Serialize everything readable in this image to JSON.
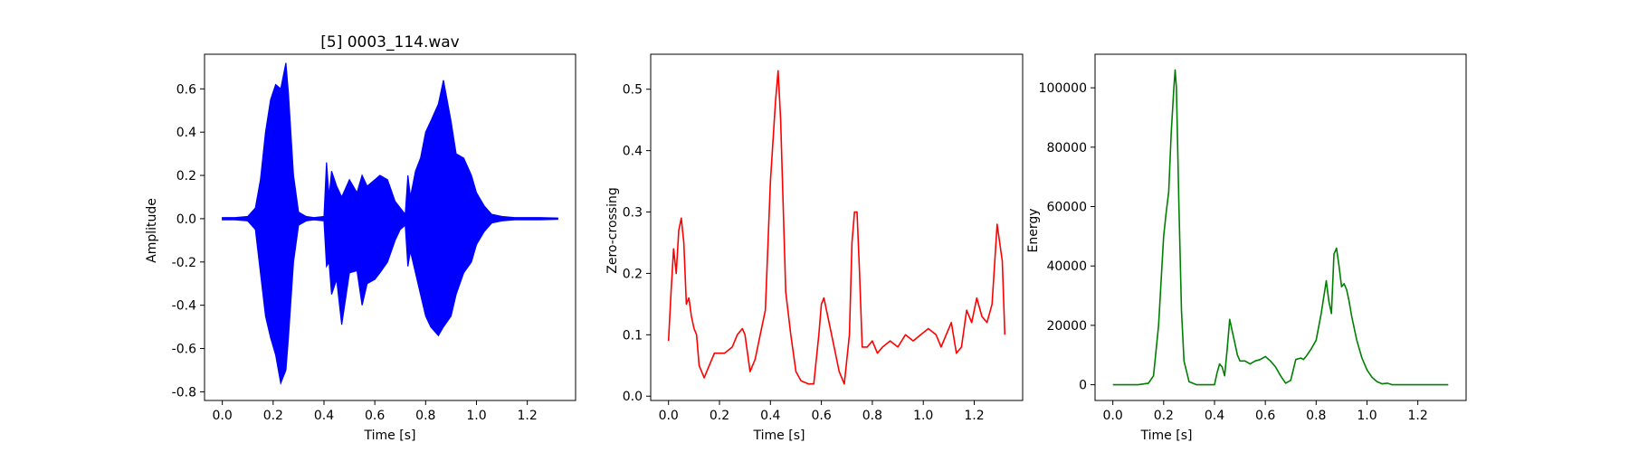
{
  "chart_data": [
    {
      "type": "line",
      "title": "[5] 0003_114.wav",
      "xlabel": "Time [s]",
      "ylabel": "Amplitude",
      "xlim": [
        -0.07,
        1.39
      ],
      "ylim": [
        -0.84,
        0.76
      ],
      "xticks": [
        0.0,
        0.2,
        0.4,
        0.6,
        0.8,
        1.0,
        1.2
      ],
      "yticks": [
        -0.8,
        -0.6,
        -0.4,
        -0.2,
        0.0,
        0.2,
        0.4,
        0.6
      ],
      "series": [
        {
          "color": "#0000ff",
          "render": "waveform",
          "x": [
            0.0,
            0.05,
            0.1,
            0.13,
            0.15,
            0.17,
            0.19,
            0.21,
            0.23,
            0.25,
            0.26,
            0.28,
            0.3,
            0.33,
            0.36,
            0.4,
            0.41,
            0.42,
            0.43,
            0.45,
            0.47,
            0.5,
            0.53,
            0.55,
            0.57,
            0.6,
            0.62,
            0.65,
            0.68,
            0.7,
            0.72,
            0.73,
            0.74,
            0.76,
            0.78,
            0.8,
            0.82,
            0.85,
            0.87,
            0.9,
            0.92,
            0.95,
            0.98,
            1.0,
            1.03,
            1.06,
            1.1,
            1.15,
            1.2,
            1.25,
            1.32
          ],
          "upper": [
            0.005,
            0.005,
            0.01,
            0.05,
            0.18,
            0.4,
            0.55,
            0.62,
            0.6,
            0.72,
            0.58,
            0.2,
            0.03,
            0.01,
            0.005,
            0.01,
            0.26,
            0.1,
            0.22,
            0.15,
            0.1,
            0.18,
            0.12,
            0.2,
            0.15,
            0.18,
            0.2,
            0.18,
            0.08,
            0.05,
            0.02,
            0.2,
            0.1,
            0.22,
            0.28,
            0.4,
            0.45,
            0.53,
            0.64,
            0.45,
            0.3,
            0.28,
            0.2,
            0.12,
            0.06,
            0.02,
            0.01,
            0.005,
            0.005,
            0.005,
            0.003
          ],
          "lower": [
            -0.005,
            -0.005,
            -0.01,
            -0.05,
            -0.25,
            -0.45,
            -0.55,
            -0.63,
            -0.76,
            -0.7,
            -0.55,
            -0.2,
            -0.03,
            -0.01,
            -0.005,
            -0.01,
            -0.22,
            -0.2,
            -0.35,
            -0.28,
            -0.49,
            -0.25,
            -0.24,
            -0.4,
            -0.3,
            -0.28,
            -0.25,
            -0.2,
            -0.1,
            -0.05,
            -0.03,
            -0.22,
            -0.15,
            -0.25,
            -0.35,
            -0.45,
            -0.5,
            -0.54,
            -0.5,
            -0.45,
            -0.35,
            -0.25,
            -0.2,
            -0.12,
            -0.06,
            -0.02,
            -0.01,
            -0.005,
            -0.005,
            -0.005,
            -0.003
          ]
        }
      ],
      "grid": false
    },
    {
      "type": "line",
      "title": "",
      "xlabel": "Time [s]",
      "ylabel": "Zero-crossing",
      "xlim": [
        -0.07,
        1.39
      ],
      "ylim": [
        -0.007,
        0.557
      ],
      "xticks": [
        0.0,
        0.2,
        0.4,
        0.6,
        0.8,
        1.0,
        1.2
      ],
      "yticks": [
        0.0,
        0.1,
        0.2,
        0.3,
        0.4,
        0.5
      ],
      "series": [
        {
          "color": "#ff0000",
          "x": [
            0.0,
            0.01,
            0.02,
            0.03,
            0.04,
            0.05,
            0.06,
            0.07,
            0.08,
            0.09,
            0.1,
            0.11,
            0.12,
            0.14,
            0.16,
            0.18,
            0.2,
            0.22,
            0.25,
            0.27,
            0.29,
            0.3,
            0.32,
            0.34,
            0.36,
            0.38,
            0.4,
            0.42,
            0.43,
            0.44,
            0.46,
            0.48,
            0.5,
            0.52,
            0.55,
            0.57,
            0.59,
            0.6,
            0.61,
            0.63,
            0.65,
            0.67,
            0.69,
            0.71,
            0.72,
            0.73,
            0.74,
            0.75,
            0.76,
            0.78,
            0.8,
            0.82,
            0.84,
            0.87,
            0.9,
            0.93,
            0.96,
            0.99,
            1.02,
            1.05,
            1.07,
            1.09,
            1.11,
            1.13,
            1.15,
            1.17,
            1.19,
            1.21,
            1.23,
            1.25,
            1.27,
            1.29,
            1.31,
            1.32
          ],
          "y": [
            0.09,
            0.17,
            0.24,
            0.2,
            0.27,
            0.29,
            0.25,
            0.15,
            0.16,
            0.13,
            0.11,
            0.1,
            0.05,
            0.03,
            0.05,
            0.07,
            0.07,
            0.07,
            0.08,
            0.1,
            0.11,
            0.1,
            0.04,
            0.06,
            0.1,
            0.14,
            0.35,
            0.48,
            0.53,
            0.45,
            0.17,
            0.1,
            0.04,
            0.025,
            0.02,
            0.02,
            0.1,
            0.15,
            0.16,
            0.12,
            0.08,
            0.04,
            0.02,
            0.1,
            0.25,
            0.3,
            0.3,
            0.2,
            0.08,
            0.08,
            0.09,
            0.07,
            0.08,
            0.09,
            0.08,
            0.1,
            0.09,
            0.1,
            0.11,
            0.1,
            0.08,
            0.1,
            0.12,
            0.07,
            0.08,
            0.14,
            0.12,
            0.16,
            0.13,
            0.12,
            0.15,
            0.28,
            0.22,
            0.1
          ]
        }
      ],
      "grid": false
    },
    {
      "type": "line",
      "title": "",
      "xlabel": "Time [s]",
      "ylabel": "Energy",
      "xlim": [
        -0.07,
        1.39
      ],
      "ylim": [
        -5300,
        111300
      ],
      "xticks": [
        0.0,
        0.2,
        0.4,
        0.6,
        0.8,
        1.0,
        1.2
      ],
      "yticks": [
        0,
        20000,
        40000,
        60000,
        80000,
        100000
      ],
      "series": [
        {
          "color": "#008000",
          "x": [
            0.0,
            0.05,
            0.1,
            0.14,
            0.16,
            0.18,
            0.2,
            0.21,
            0.22,
            0.23,
            0.24,
            0.245,
            0.25,
            0.26,
            0.27,
            0.28,
            0.3,
            0.33,
            0.36,
            0.4,
            0.41,
            0.42,
            0.43,
            0.44,
            0.45,
            0.46,
            0.47,
            0.48,
            0.49,
            0.5,
            0.52,
            0.54,
            0.56,
            0.58,
            0.6,
            0.62,
            0.64,
            0.66,
            0.68,
            0.7,
            0.72,
            0.74,
            0.75,
            0.76,
            0.78,
            0.8,
            0.82,
            0.84,
            0.85,
            0.86,
            0.87,
            0.88,
            0.89,
            0.9,
            0.91,
            0.92,
            0.93,
            0.94,
            0.96,
            0.98,
            1.0,
            1.02,
            1.04,
            1.06,
            1.08,
            1.1,
            1.15,
            1.2,
            1.25,
            1.32
          ],
          "y": [
            0,
            0,
            0,
            500,
            3000,
            20000,
            50000,
            58000,
            65000,
            85000,
            100000,
            106000,
            100000,
            60000,
            25000,
            8000,
            1000,
            0,
            0,
            0,
            4000,
            7000,
            6000,
            3000,
            12000,
            22000,
            18000,
            14000,
            10000,
            8000,
            8000,
            7000,
            8000,
            8500,
            9500,
            8000,
            6000,
            3000,
            500,
            1500,
            8500,
            9000,
            8500,
            9500,
            12000,
            15000,
            24000,
            35000,
            28000,
            24000,
            44000,
            46000,
            40000,
            33000,
            34000,
            32000,
            28000,
            23000,
            15000,
            9000,
            5000,
            2500,
            1000,
            300,
            500,
            0,
            0,
            0,
            0,
            0
          ]
        }
      ],
      "grid": false
    }
  ]
}
